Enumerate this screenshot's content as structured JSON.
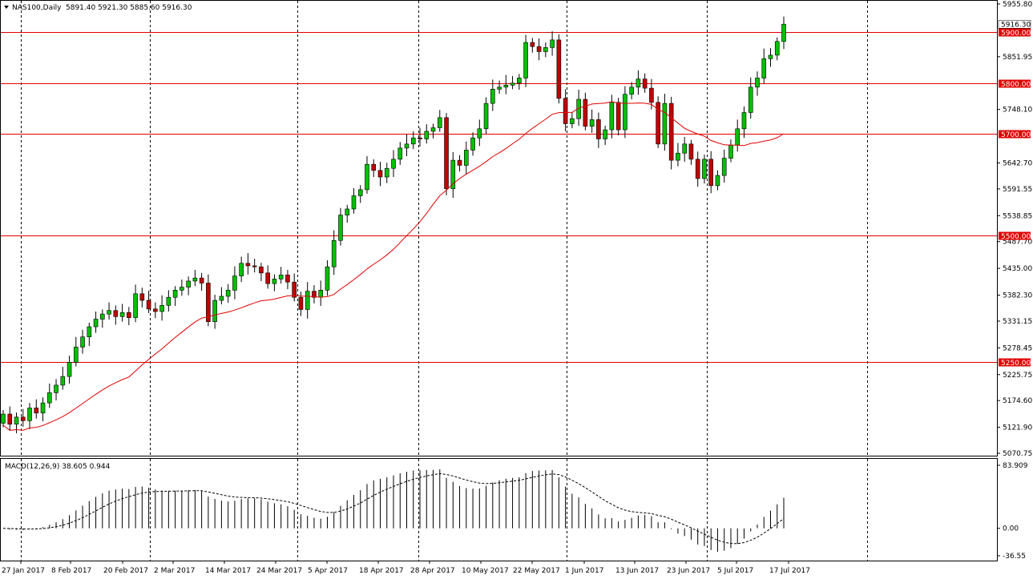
{
  "header": {
    "symbol": "NAS100,Daily",
    "ohlc": "5891.40 5921.30 5885.60 5916.30"
  },
  "macd": {
    "label": "MACD(12,26,9) 38.605 0.944",
    "axis_ticks": [
      "83.909",
      "0.00",
      "-36.55"
    ],
    "colors": {
      "histogram": "#000000",
      "signal": "#000000"
    }
  },
  "price_axis": {
    "ticks": [
      "5955.80",
      "5851.95",
      "5800.00",
      "5748.10",
      "5700.00",
      "5642.70",
      "5591.55",
      "5538.85",
      "5487.70",
      "5435.00",
      "5382.30",
      "5331.15",
      "5278.45",
      "5225.75",
      "5174.60",
      "5121.90",
      "5070.75"
    ],
    "current_price_label": "5916.30",
    "level_labels": [
      "5900.00",
      "5800.00",
      "5700.00",
      "5500.00",
      "5250.00"
    ]
  },
  "time_axis": {
    "labels": [
      "27 Jan 2017",
      "8 Feb 2017",
      "20 Feb 2017",
      "2 Mar 2017",
      "14 Mar 2017",
      "24 Mar 2017",
      "5 Apr 2017",
      "18 Apr 2017",
      "28 Apr 2017",
      "10 May 2017",
      "22 May 2017",
      "1 Jun 2017",
      "13 Jun 2017",
      "23 Jun 2017",
      "5 Jul 2017",
      "17 Jul 2017"
    ]
  },
  "colors": {
    "bull": "#00c000",
    "bear": "#c00000",
    "ma": "#e00000",
    "level": "#e00000",
    "grid": "#000000",
    "label_bg": "#e00000",
    "label_text": "#ffffff"
  },
  "chart_data": {
    "type": "candlestick",
    "ylim": [
      5070.75,
      5955.8
    ],
    "levels": [
      5900,
      5800,
      5700,
      5500,
      5250
    ],
    "closes": [
      5148,
      5128,
      5142,
      5135,
      5160,
      5150,
      5170,
      5190,
      5205,
      5222,
      5250,
      5280,
      5300,
      5320,
      5335,
      5345,
      5352,
      5340,
      5348,
      5338,
      5385,
      5372,
      5355,
      5350,
      5362,
      5378,
      5392,
      5398,
      5410,
      5416,
      5406,
      5330,
      5372,
      5380,
      5392,
      5420,
      5445,
      5440,
      5438,
      5426,
      5405,
      5414,
      5422,
      5408,
      5378,
      5354,
      5390,
      5378,
      5392,
      5438,
      5490,
      5540,
      5552,
      5578,
      5590,
      5640,
      5628,
      5615,
      5632,
      5650,
      5672,
      5680,
      5692,
      5690,
      5705,
      5712,
      5732,
      5592,
      5648,
      5638,
      5668,
      5692,
      5710,
      5760,
      5788,
      5792,
      5796,
      5800,
      5810,
      5880,
      5872,
      5862,
      5870,
      5885,
      5770,
      5720,
      5730,
      5768,
      5715,
      5728,
      5690,
      5708,
      5762,
      5708,
      5778,
      5792,
      5808,
      5790,
      5762,
      5680,
      5760,
      5648,
      5662,
      5680,
      5650,
      5612,
      5650,
      5598,
      5618,
      5652,
      5678,
      5710,
      5742,
      5792,
      5810,
      5848,
      5855,
      5882,
      5916
    ]
  }
}
